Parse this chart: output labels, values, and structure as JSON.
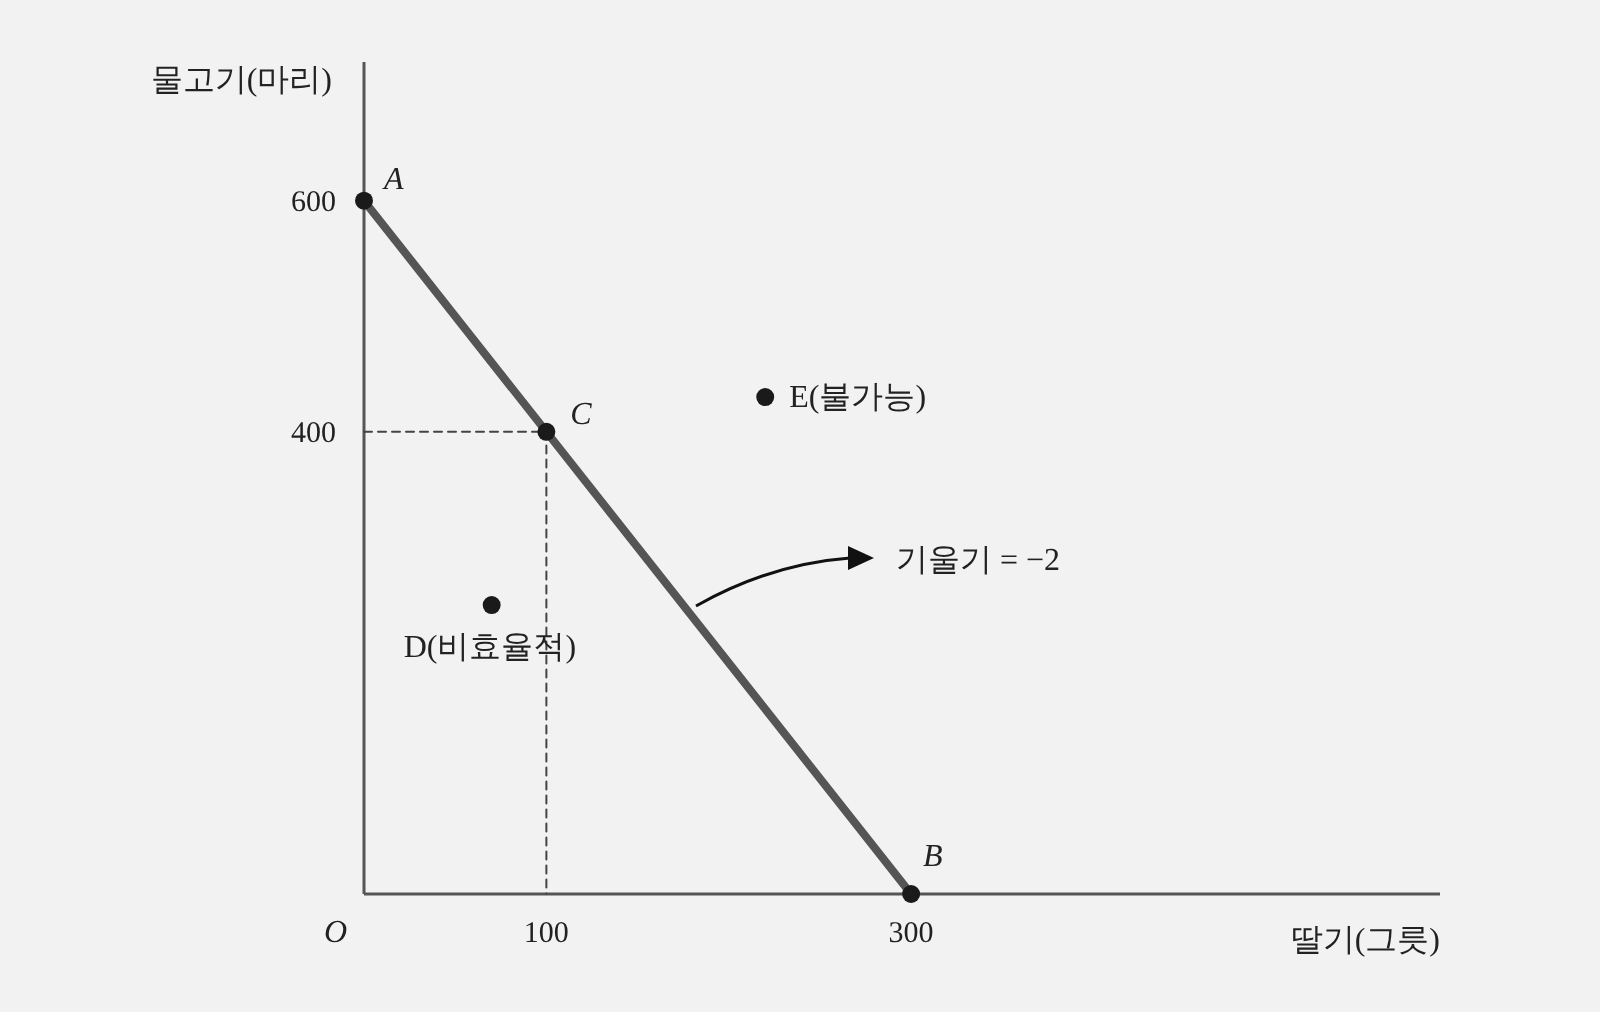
{
  "chart_data": {
    "type": "line",
    "xlabel": "딸기(그릇)",
    "ylabel": "물고기(마리)",
    "xlim": [
      0,
      590
    ],
    "ylim": [
      0,
      720
    ],
    "xticks": [
      100,
      300
    ],
    "yticks": [
      400,
      600
    ],
    "grid": false,
    "series": [
      {
        "x": [
          0,
          300
        ],
        "values": [
          600,
          0
        ],
        "color": "#555555",
        "line_style": "solid"
      },
      {
        "x": [
          0,
          100,
          100
        ],
        "values": [
          400,
          400,
          0
        ],
        "color": "#444444",
        "line_style": "dashed"
      },
      {
        "type": "scatter",
        "x": [
          0,
          100,
          300,
          70,
          220
        ],
        "values": [
          600,
          400,
          0,
          250,
          430
        ],
        "color": "#1a1a1a",
        "marker": "circle"
      }
    ],
    "annotations": [
      {
        "text": "A",
        "x": 0,
        "y": 600
      },
      {
        "text": "C",
        "x": 100,
        "y": 400
      },
      {
        "text": "B",
        "x": 300,
        "y": 0
      },
      {
        "text": "D(비효율적)",
        "x": 70,
        "y": 250
      },
      {
        "text": "E(불가능)",
        "x": 220,
        "y": 430
      },
      "기울기 = −2",
      "O"
    ]
  }
}
